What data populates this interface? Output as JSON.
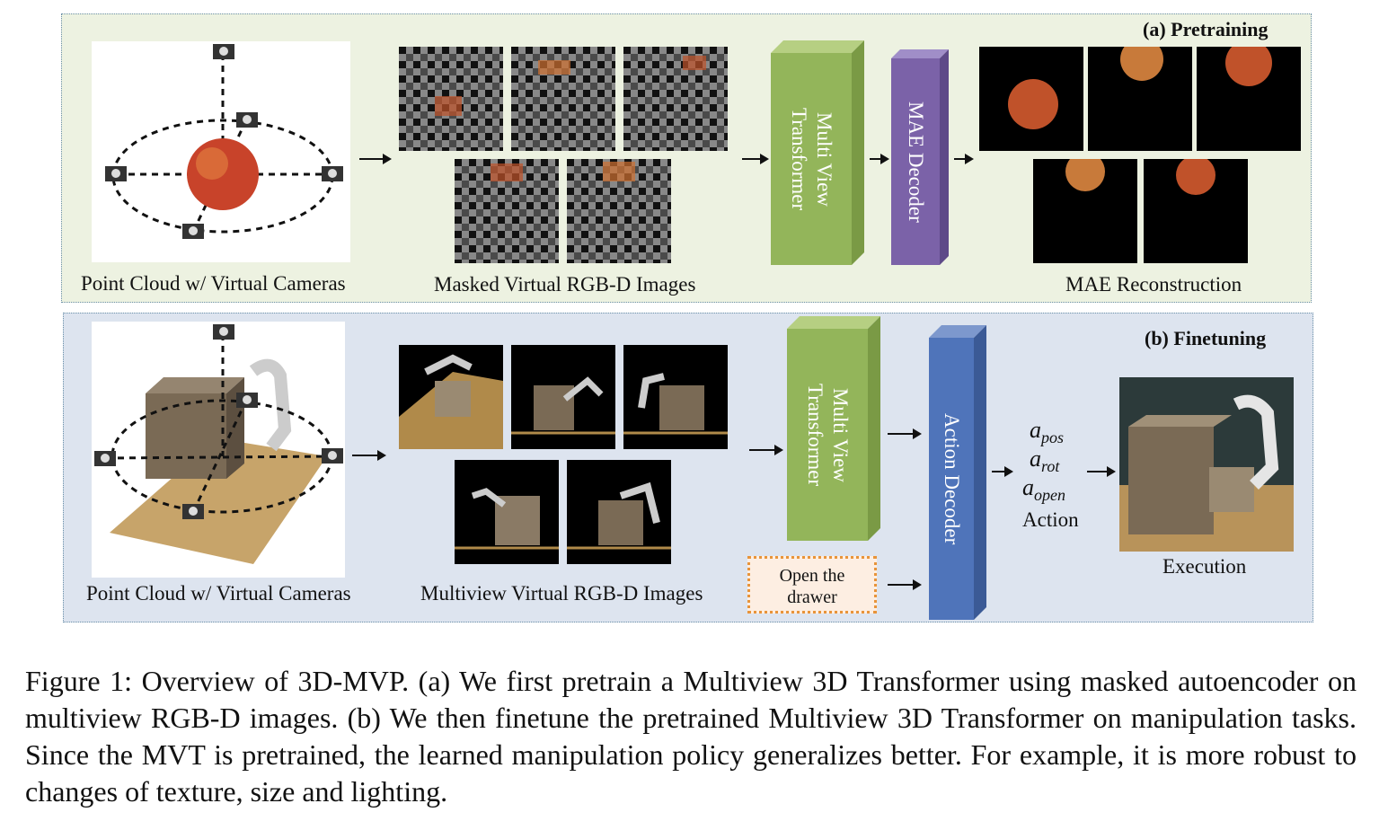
{
  "pretraining": {
    "title": "(a) Pretraining",
    "point_cloud_label": "Point Cloud w/ Virtual Cameras",
    "masked_images_label": "Masked Virtual RGB-D Images",
    "transformer_label": "Multi View\nTransformer",
    "decoder_label": "MAE Decoder",
    "reconstruction_label": "MAE Reconstruction"
  },
  "finetuning": {
    "title": "(b) Finetuning",
    "point_cloud_label": "Point Cloud w/ Virtual Cameras",
    "images_label": "Multiview Virtual RGB-D Images",
    "instruction": "Open the\ndrawer",
    "transformer_label": "Multi View\nTransformer",
    "decoder_label": "Action Decoder",
    "action_pos": "a",
    "action_pos_sub": "pos",
    "action_rot": "a",
    "action_rot_sub": "rot",
    "action_open": "a",
    "action_open_sub": "open",
    "action_label": "Action",
    "execution_label": "Execution"
  },
  "caption": "Figure 1: Overview of 3D-MVP. (a) We first pretrain a Multiview 3D Transformer using masked autoencoder on multiview RGB-D images. (b) We then finetune the pretrained Multiview 3D Transformer on manipulation tasks. Since the MVT is pretrained, the learned manipulation policy generalizes better. For example, it is more robust to changes of texture, size and lighting.",
  "colors": {
    "pretrain_bg": "#edf2e1",
    "finetune_bg": "#dde4ef",
    "transformer_block": "#93b55a",
    "mae_decoder_block": "#7b62a8",
    "action_decoder_block": "#4f74ba",
    "instruction_border": "#e8943a"
  }
}
